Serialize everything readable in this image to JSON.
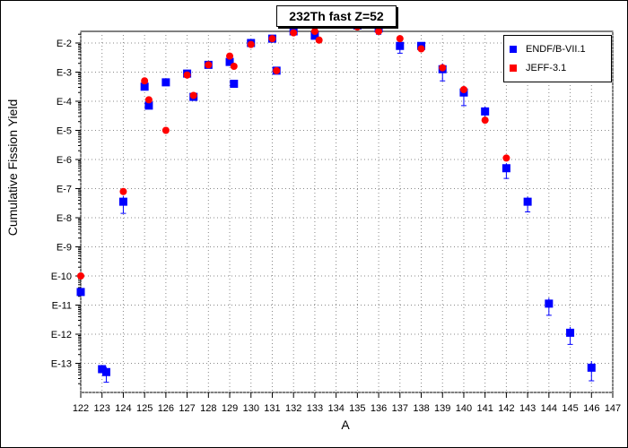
{
  "chart_data": {
    "type": "scatter",
    "title": "232Th fast Z=52",
    "xlabel": "A",
    "ylabel": "Cumulative Fission Yield",
    "xlim": [
      122,
      147
    ],
    "y_scale": "log",
    "ylim_exponent": [
      -14,
      -1.6
    ],
    "x_ticks": [
      122,
      123,
      124,
      125,
      126,
      127,
      128,
      129,
      130,
      131,
      132,
      133,
      134,
      135,
      136,
      137,
      138,
      139,
      140,
      141,
      142,
      143,
      144,
      145,
      146,
      147
    ],
    "y_ticks": [
      {
        "exp": -2,
        "label": "E-2"
      },
      {
        "exp": -3,
        "label": "E-3"
      },
      {
        "exp": -4,
        "label": "E-4"
      },
      {
        "exp": -5,
        "label": "E-5"
      },
      {
        "exp": -6,
        "label": "E-6"
      },
      {
        "exp": -7,
        "label": "E-7"
      },
      {
        "exp": -8,
        "label": "E-8"
      },
      {
        "exp": -9,
        "label": "E-9"
      },
      {
        "exp": -10,
        "label": "E-10"
      },
      {
        "exp": -11,
        "label": "E-11"
      },
      {
        "exp": -12,
        "label": "E-12"
      },
      {
        "exp": -13,
        "label": "E-13"
      }
    ],
    "grid": true,
    "legend_position": "top-right",
    "series": [
      {
        "name": "ENDF/B-VII.1",
        "color": "#0000ff",
        "marker": "square",
        "points": [
          {
            "x": 122,
            "y_exp": -10.55
          },
          {
            "x": 123,
            "y_exp": -13.2
          },
          {
            "x": 123.2,
            "y_exp": -13.3,
            "err": 0.35
          },
          {
            "x": 124,
            "y_exp": -7.45,
            "err": 0.4
          },
          {
            "x": 125,
            "y_exp": -3.5
          },
          {
            "x": 125.2,
            "y_exp": -4.15
          },
          {
            "x": 126,
            "y_exp": -3.35
          },
          {
            "x": 127,
            "y_exp": -3.05
          },
          {
            "x": 127.3,
            "y_exp": -3.85
          },
          {
            "x": 128,
            "y_exp": -2.75
          },
          {
            "x": 129,
            "y_exp": -2.65
          },
          {
            "x": 129.2,
            "y_exp": -3.4
          },
          {
            "x": 130,
            "y_exp": -2.0
          },
          {
            "x": 131,
            "y_exp": -1.85
          },
          {
            "x": 131.2,
            "y_exp": -2.95
          },
          {
            "x": 132,
            "y_exp": -1.6
          },
          {
            "x": 133,
            "y_exp": -1.75
          },
          {
            "x": 134,
            "y_exp": -1.35
          },
          {
            "x": 135,
            "y_exp": -1.4
          },
          {
            "x": 136,
            "y_exp": -1.5,
            "err": 0.2
          },
          {
            "x": 137,
            "y_exp": -2.1,
            "err": 0.25
          },
          {
            "x": 138,
            "y_exp": -2.1
          },
          {
            "x": 139,
            "y_exp": -2.9,
            "err": 0.4
          },
          {
            "x": 140,
            "y_exp": -3.7,
            "err": 0.45
          },
          {
            "x": 141,
            "y_exp": -4.35,
            "err": 0.35
          },
          {
            "x": 142,
            "y_exp": -6.3,
            "err": 0.35
          },
          {
            "x": 143,
            "y_exp": -7.45,
            "err": 0.35
          },
          {
            "x": 144,
            "y_exp": -10.95,
            "err": 0.4
          },
          {
            "x": 145,
            "y_exp": -11.95,
            "err": 0.4
          },
          {
            "x": 146,
            "y_exp": -13.15,
            "err": 0.45
          }
        ]
      },
      {
        "name": "JEFF-3.1",
        "color": "#ff0000",
        "marker": "circle",
        "points": [
          {
            "x": 122,
            "y_exp": -10.0
          },
          {
            "x": 124,
            "y_exp": -7.1
          },
          {
            "x": 125,
            "y_exp": -3.3
          },
          {
            "x": 125.2,
            "y_exp": -3.95
          },
          {
            "x": 126,
            "y_exp": -5.0
          },
          {
            "x": 127,
            "y_exp": -3.1
          },
          {
            "x": 127.3,
            "y_exp": -3.8
          },
          {
            "x": 128,
            "y_exp": -2.75
          },
          {
            "x": 129,
            "y_exp": -2.45
          },
          {
            "x": 129.2,
            "y_exp": -2.8
          },
          {
            "x": 130,
            "y_exp": -2.05
          },
          {
            "x": 131,
            "y_exp": -1.85
          },
          {
            "x": 131.2,
            "y_exp": -2.95
          },
          {
            "x": 132,
            "y_exp": -1.65
          },
          {
            "x": 133,
            "y_exp": -1.6
          },
          {
            "x": 133.2,
            "y_exp": -1.9
          },
          {
            "x": 134,
            "y_exp": -1.35
          },
          {
            "x": 135,
            "y_exp": -1.45
          },
          {
            "x": 136,
            "y_exp": -1.6
          },
          {
            "x": 137,
            "y_exp": -1.85
          },
          {
            "x": 138,
            "y_exp": -2.2
          },
          {
            "x": 139,
            "y_exp": -2.85
          },
          {
            "x": 140,
            "y_exp": -3.6
          },
          {
            "x": 141,
            "y_exp": -4.65
          },
          {
            "x": 142,
            "y_exp": -5.95
          }
        ]
      }
    ]
  }
}
